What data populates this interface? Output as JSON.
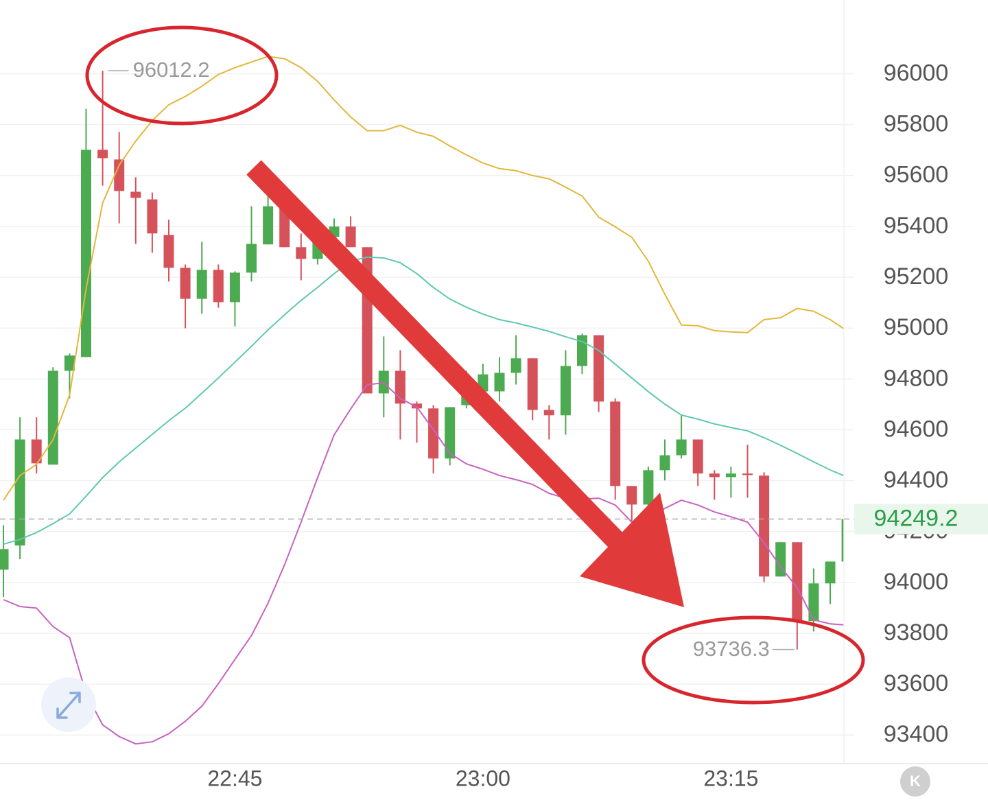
{
  "chart_data": {
    "type": "candlestick",
    "categories": [
      null,
      null,
      null,
      null,
      null,
      null,
      null,
      null,
      null,
      null,
      null,
      null,
      null,
      null,
      "22:45",
      null,
      null,
      null,
      null,
      null,
      null,
      null,
      null,
      null,
      null,
      null,
      null,
      null,
      null,
      "23:00",
      null,
      null,
      null,
      null,
      null,
      null,
      null,
      null,
      null,
      null,
      null,
      null,
      null,
      null,
      "23:15",
      null,
      null,
      null,
      null,
      null,
      null,
      null
    ],
    "open": [
      94050,
      94145,
      94562,
      94463,
      94832,
      94886,
      95701,
      95663,
      95536,
      95506,
      95366,
      95237,
      95115,
      95229,
      95102,
      95218,
      95329,
      95479,
      95318,
      95272,
      95358,
      95399,
      95318,
      94743,
      94832,
      94703,
      94684,
      94487,
      94697,
      94751,
      94751,
      94824,
      94881,
      94678,
      94657,
      94851,
      94972,
      94711,
      94379,
      94306,
      94441,
      94500,
      94562,
      94428,
      94414,
      94428,
      94420,
      94023,
      94158,
      93848,
      93996,
      94082
    ],
    "high": [
      94225,
      94649,
      94649,
      94846,
      94900,
      95862,
      96012.2,
      95771,
      95593,
      95533,
      95426,
      95250,
      95339,
      95250,
      95223,
      95479,
      95528,
      95506,
      95372,
      95426,
      95431,
      95439,
      95318,
      94967,
      94913,
      94711,
      94697,
      94689,
      94832,
      94860,
      94886,
      94972,
      94881,
      94697,
      94913,
      94978,
      94972,
      94724,
      94379,
      94455,
      94562,
      94657,
      94562,
      94441,
      94455,
      94541,
      94433,
      94158,
      94158,
      94055,
      94082,
      94249.2
    ],
    "low": [
      93942,
      94091,
      94428,
      94463,
      94724,
      94886,
      95560,
      95412,
      95331,
      95296,
      95183,
      94999,
      95056,
      95080,
      95007,
      95183,
      95329,
      95318,
      95188,
      95250,
      95318,
      95318,
      94743,
      94649,
      94562,
      94549,
      94428,
      94460,
      94684,
      94730,
      94711,
      94778,
      94638,
      94562,
      94581,
      94819,
      94670,
      94325,
      94239,
      94279,
      94401,
      94487,
      94379,
      94325,
      94333,
      94333,
      94001,
      94023,
      93736.3,
      93807,
      93915,
      94082
    ],
    "close": [
      94131,
      94562,
      94468,
      94832,
      94892,
      95701,
      95668,
      95539,
      95512,
      95372,
      95237,
      95115,
      95229,
      95102,
      95218,
      95331,
      95479,
      95318,
      95272,
      95399,
      95399,
      95318,
      94743,
      94832,
      94703,
      94684,
      94487,
      94689,
      94778,
      94818,
      94824,
      94881,
      94678,
      94657,
      94851,
      94972,
      94711,
      94379,
      94306,
      94441,
      94500,
      94562,
      94428,
      94414,
      94428,
      94422,
      94023,
      94158,
      93848,
      93996,
      94082,
      94249.2
    ],
    "up_color": "#4caa50",
    "down_color": "#d5525b",
    "lines": [
      {
        "color": "#e2b73c",
        "values": [
          94323,
          94420,
          94464,
          94561,
          94736,
          95155,
          95492,
          95641,
          95735,
          95816,
          95878,
          95911,
          95951,
          95997,
          96024,
          96046,
          96068,
          96059,
          96024,
          95970,
          95897,
          95830,
          95776,
          95776,
          95797,
          95770,
          95754,
          95716,
          95681,
          95649,
          95627,
          95619,
          95600,
          95587,
          95554,
          95519,
          95436,
          95398,
          95357,
          95263,
          95133,
          95012,
          95009,
          94990,
          94985,
          94982,
          95033,
          95041,
          95077,
          95066,
          95033,
          94990
        ]
      },
      {
        "color": "#5ec8b0",
        "values": [
          94150,
          94169,
          94196,
          94231,
          94269,
          94339,
          94412,
          94474,
          94528,
          94582,
          94636,
          94685,
          94744,
          94804,
          94866,
          94928,
          94993,
          95052,
          95109,
          95160,
          95214,
          95263,
          95279,
          95276,
          95257,
          95214,
          95160,
          95114,
          95082,
          95055,
          95033,
          95020,
          95004,
          94987,
          94966,
          94947,
          94912,
          94858,
          94804,
          94750,
          94701,
          94658,
          94642,
          94623,
          94609,
          94596,
          94569,
          94539,
          94507,
          94474,
          94442,
          94415
        ]
      },
      {
        "color": "#c862c2",
        "values": [
          93932,
          93905,
          93899,
          93826,
          93783,
          93562,
          93440,
          93394,
          93365,
          93373,
          93405,
          93454,
          93513,
          93602,
          93697,
          93791,
          93918,
          94069,
          94237,
          94412,
          94580,
          94682,
          94777,
          94785,
          94723,
          94690,
          94601,
          94507,
          94466,
          94445,
          94420,
          94404,
          94385,
          94350,
          94331,
          94328,
          94331,
          94304,
          94237,
          94258,
          94291,
          94323,
          94304,
          94277,
          94258,
          94237,
          94156,
          94061,
          93980,
          93853,
          93837,
          93832
        ]
      }
    ],
    "ylim": [
      93290,
      96290
    ],
    "yticks": [
      93400,
      93600,
      93800,
      94000,
      94200,
      94400,
      94600,
      94800,
      95000,
      95200,
      95400,
      95600,
      95800,
      96000
    ],
    "grid": true,
    "price_badge_color": "#2e9e4a"
  },
  "k_button": "K"
}
